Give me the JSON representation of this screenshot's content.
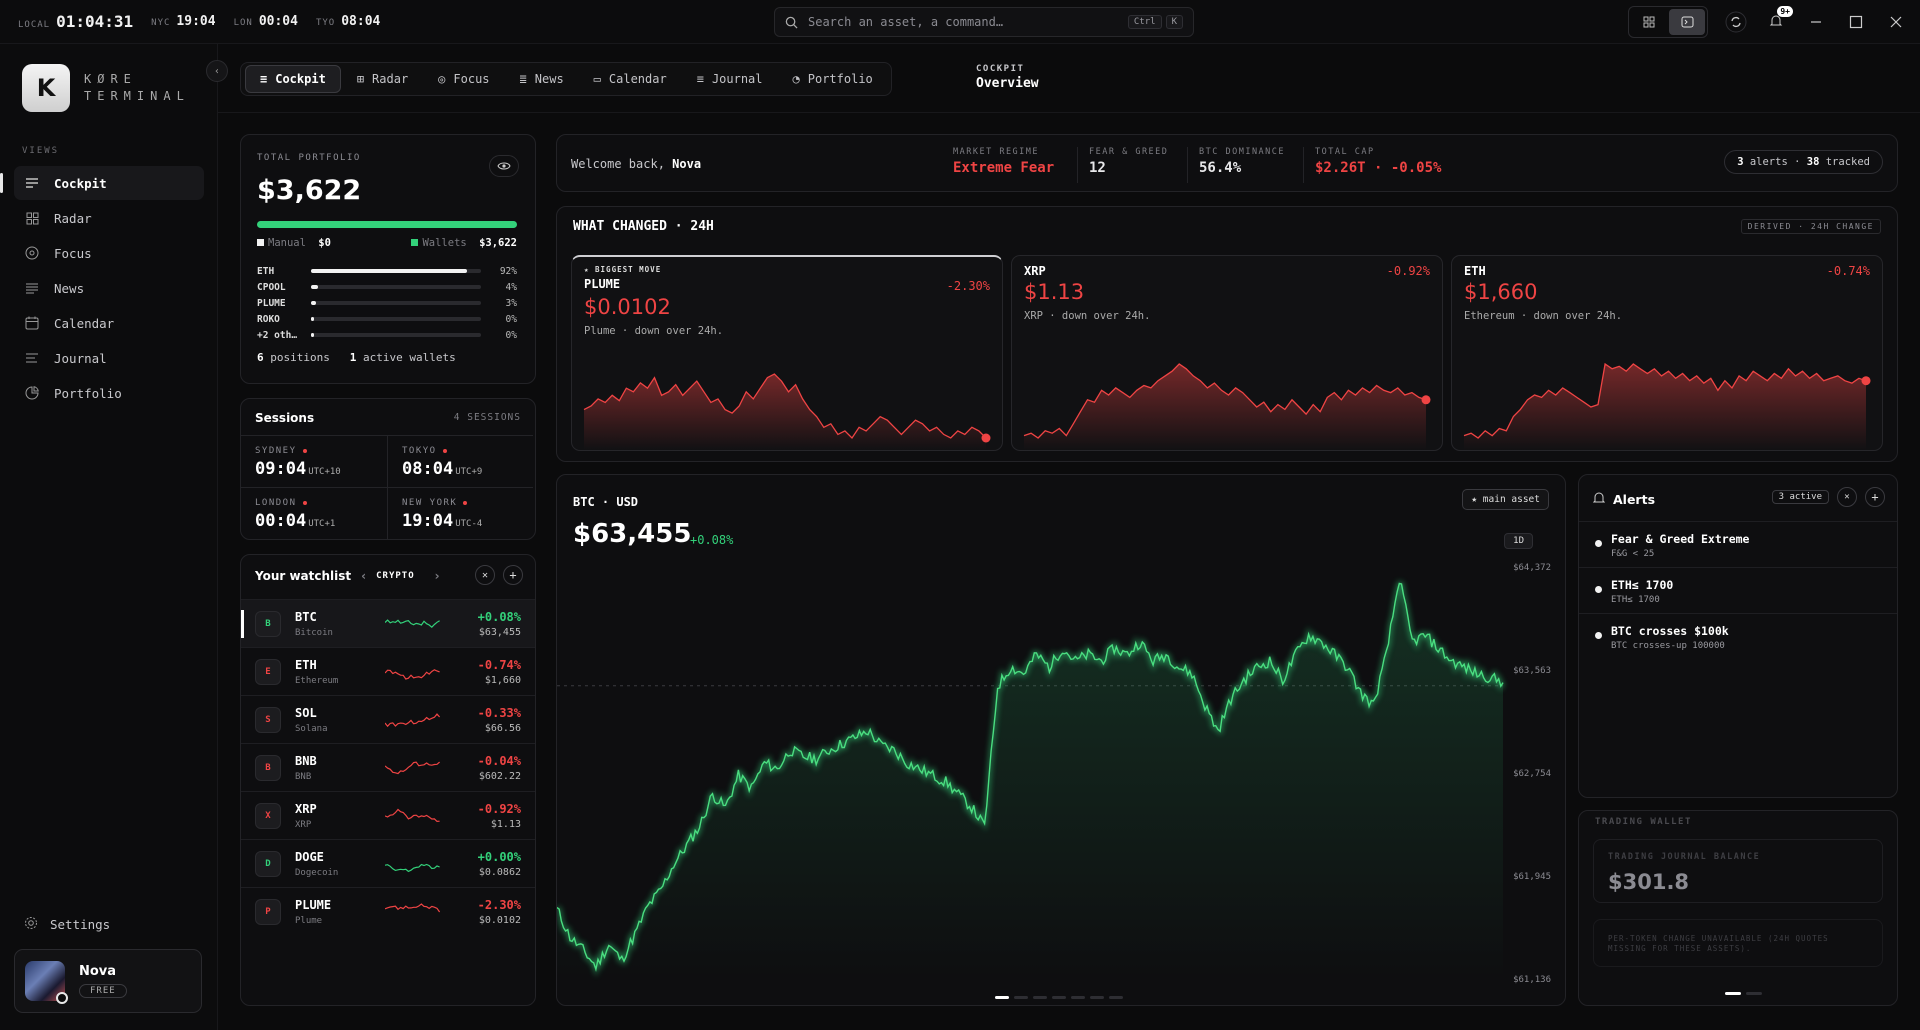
{
  "topbar": {
    "clocks": [
      {
        "label": "LOCAL",
        "time": "01:04:31"
      },
      {
        "label": "NYC",
        "time": "19:04"
      },
      {
        "label": "LON",
        "time": "00:04"
      },
      {
        "label": "TYO",
        "time": "08:04"
      }
    ],
    "search_placeholder": "Search an asset, a command…",
    "search_kbd": [
      "Ctrl",
      "K"
    ],
    "notifications_badge": "9+"
  },
  "sidebar": {
    "logo_letter": "K",
    "logo_line1": "KØRE",
    "logo_line2": "TERMINAL",
    "section_label": "VIEWS",
    "items": [
      {
        "label": "Cockpit",
        "icon": "lines-icon"
      },
      {
        "label": "Radar",
        "icon": "grid-icon"
      },
      {
        "label": "Focus",
        "icon": "target-icon"
      },
      {
        "label": "News",
        "icon": "news-icon"
      },
      {
        "label": "Calendar",
        "icon": "calendar-icon"
      },
      {
        "label": "Journal",
        "icon": "journal-icon"
      },
      {
        "label": "Portfolio",
        "icon": "pie-icon"
      }
    ],
    "settings_label": "Settings",
    "user": {
      "name": "Nova",
      "plan": "FREE"
    }
  },
  "tabs": [
    {
      "label": "Cockpit"
    },
    {
      "label": "Radar"
    },
    {
      "label": "Focus"
    },
    {
      "label": "News"
    },
    {
      "label": "Calendar"
    },
    {
      "label": "Journal"
    },
    {
      "label": "Portfolio"
    }
  ],
  "breadcrumb": {
    "section": "COCKPIT",
    "page": "Overview"
  },
  "portfolio": {
    "label": "TOTAL PORTFOLIO",
    "total": "$3,622",
    "manual_label": "Manual",
    "manual_value": "$0",
    "wallets_label": "Wallets",
    "wallets_value": "$3,622",
    "manual_fraction": 0.0,
    "allocations": [
      {
        "name": "ETH",
        "pct": "92%",
        "value": 92
      },
      {
        "name": "CPOOL",
        "pct": "4%",
        "value": 4
      },
      {
        "name": "PLUME",
        "pct": "3%",
        "value": 3
      },
      {
        "name": "ROKO",
        "pct": "0%",
        "value": 0
      },
      {
        "name": "+2 oth…",
        "pct": "0%",
        "value": 0
      }
    ],
    "positions_count": "6",
    "positions_label": "positions",
    "wallets_count": "1",
    "wallets_count_label": "active wallets"
  },
  "sessions": {
    "title": "Sessions",
    "count": "4 SESSIONS",
    "items": [
      {
        "city": "SYDNEY",
        "time": "09:04",
        "tz": "UTC+10"
      },
      {
        "city": "TOKYO",
        "time": "08:04",
        "tz": "UTC+9"
      },
      {
        "city": "LONDON",
        "time": "00:04",
        "tz": "UTC+1"
      },
      {
        "city": "NEW YORK",
        "time": "19:04",
        "tz": "UTC-4"
      }
    ]
  },
  "watchlist": {
    "title": "Your watchlist",
    "category": "CRYPTO",
    "items": [
      {
        "letter": "B",
        "symbol": "BTC",
        "name": "Bitcoin",
        "change": "+0.08%",
        "price": "$63,455",
        "dir": "up"
      },
      {
        "letter": "E",
        "symbol": "ETH",
        "name": "Ethereum",
        "change": "-0.74%",
        "price": "$1,660",
        "dir": "down"
      },
      {
        "letter": "S",
        "symbol": "SOL",
        "name": "Solana",
        "change": "-0.33%",
        "price": "$66.56",
        "dir": "down"
      },
      {
        "letter": "B",
        "symbol": "BNB",
        "name": "BNB",
        "change": "-0.04%",
        "price": "$602.22",
        "dir": "down"
      },
      {
        "letter": "X",
        "symbol": "XRP",
        "name": "XRP",
        "change": "-0.92%",
        "price": "$1.13",
        "dir": "down"
      },
      {
        "letter": "D",
        "symbol": "DOGE",
        "name": "Dogecoin",
        "change": "+0.00%",
        "price": "$0.0862",
        "dir": "up"
      },
      {
        "letter": "P",
        "symbol": "PLUME",
        "name": "Plume",
        "change": "-2.30%",
        "price": "$0.0102",
        "dir": "down"
      }
    ]
  },
  "welcome": {
    "greeting": "Welcome back,",
    "user": "Nova",
    "metrics": [
      {
        "label": "MARKET REGIME",
        "value": "Extreme Fear",
        "color": "#ef4444"
      },
      {
        "label": "FEAR & GREED",
        "value": "12",
        "color": "#ffffff"
      },
      {
        "label": "BTC DOMINANCE",
        "value": "56.4%",
        "color": "#ffffff"
      },
      {
        "label": "TOTAL CAP",
        "value": "$2.26T · -0.05%",
        "color": "#ef4444"
      }
    ],
    "alerts_count": "3",
    "alerts_label": "alerts",
    "tracked_count": "38",
    "tracked_label": "tracked"
  },
  "what_changed": {
    "title": "WHAT CHANGED · 24H",
    "tag": "DERIVED · 24H CHANGE",
    "biggest_label": "★ BIGGEST MOVE",
    "movers": [
      {
        "symbol": "PLUME",
        "price": "$0.0102",
        "change": "-2.30%",
        "desc": "Plume · down over 24h.",
        "series": [
          40,
          42,
          46,
          44,
          48,
          45,
          52,
          50,
          55,
          52,
          58,
          48,
          50,
          54,
          48,
          52,
          56,
          50,
          44,
          46,
          40,
          38,
          42,
          50,
          46,
          52,
          58,
          60,
          56,
          50,
          54,
          46,
          40,
          36,
          30,
          32,
          26,
          28,
          24,
          30,
          28,
          32,
          36,
          34,
          30,
          26,
          30,
          34,
          32,
          28,
          30,
          26,
          24,
          28,
          26,
          30,
          28,
          24
        ]
      },
      {
        "symbol": "XRP",
        "price": "$1.13",
        "change": "-0.92%",
        "desc": "XRP · down over 24h.",
        "series": [
          20,
          22,
          18,
          24,
          22,
          26,
          20,
          30,
          40,
          50,
          48,
          58,
          54,
          60,
          56,
          52,
          58,
          62,
          60,
          66,
          70,
          74,
          80,
          76,
          70,
          66,
          60,
          64,
          58,
          54,
          60,
          56,
          50,
          44,
          48,
          40,
          46,
          42,
          50,
          44,
          38,
          46,
          40,
          52,
          56,
          50,
          58,
          54,
          60,
          56,
          62,
          58,
          56,
          60,
          54,
          56,
          52,
          50
        ]
      },
      {
        "symbol": "ETH",
        "price": "$1,660",
        "change": "-0.74%",
        "desc": "Ethereum · down over 24h.",
        "series": [
          24,
          26,
          22,
          28,
          24,
          30,
          28,
          40,
          46,
          54,
          58,
          56,
          62,
          58,
          64,
          60,
          56,
          52,
          48,
          50,
          84,
          80,
          82,
          78,
          84,
          80,
          76,
          80,
          74,
          78,
          72,
          76,
          70,
          74,
          68,
          72,
          62,
          70,
          64,
          74,
          70,
          78,
          74,
          70,
          76,
          72,
          80,
          74,
          78,
          72,
          76,
          70,
          72,
          74,
          70,
          68,
          72,
          70
        ]
      }
    ]
  },
  "btc_chart": {
    "pair": "BTC · USD",
    "price": "$63,455",
    "change": "+0.08%",
    "badge": "★ main asset",
    "timeframe": "1D",
    "y_ticks": [
      "$64,372",
      "$63,563",
      "$62,754",
      "$61,945",
      "$61,136"
    ],
    "ylim": [
      61136,
      64372
    ],
    "reference_line": 63455,
    "series": [
      61700,
      61480,
      61380,
      61250,
      61420,
      61300,
      61500,
      61720,
      61850,
      62050,
      62200,
      62350,
      62600,
      62500,
      62750,
      62650,
      62850,
      62800,
      62950,
      62900,
      62880,
      62950,
      63000,
      63050,
      63100,
      62990,
      62950,
      62850,
      62800,
      62750,
      62700,
      62600,
      62500,
      62350,
      63450,
      63600,
      63550,
      63700,
      63600,
      63750,
      63650,
      63700,
      63650,
      63750,
      63700,
      63800,
      63650,
      63700,
      63600,
      63550,
      63300,
      63100,
      63350,
      63500,
      63600,
      63650,
      63500,
      63700,
      63850,
      63800,
      63700,
      63600,
      63400,
      63300,
      63700,
      64300,
      63800,
      63850,
      63750,
      63650,
      63600,
      63550,
      63520,
      63480
    ]
  },
  "alerts_panel": {
    "title": "Alerts",
    "active": "3 active",
    "items": [
      {
        "title": "Fear & Greed Extreme",
        "sub": "F&G < 25"
      },
      {
        "title": "ETH≤ 1700",
        "sub": "ETH≤ 1700"
      },
      {
        "title": "BTC crosses $100k",
        "sub": "BTC crosses-up 100000"
      }
    ]
  },
  "trading_wallet": {
    "title": "TRADING WALLET",
    "balance_label": "TRADING JOURNAL BALANCE",
    "balance": "$301.8",
    "note": "PER-TOKEN CHANGE UNAVAILABLE (24H QUOTES MISSING FOR THESE ASSETS)."
  },
  "colors": {
    "up": "#33d17a",
    "down": "#ef4444",
    "accent": "#ffffff"
  }
}
